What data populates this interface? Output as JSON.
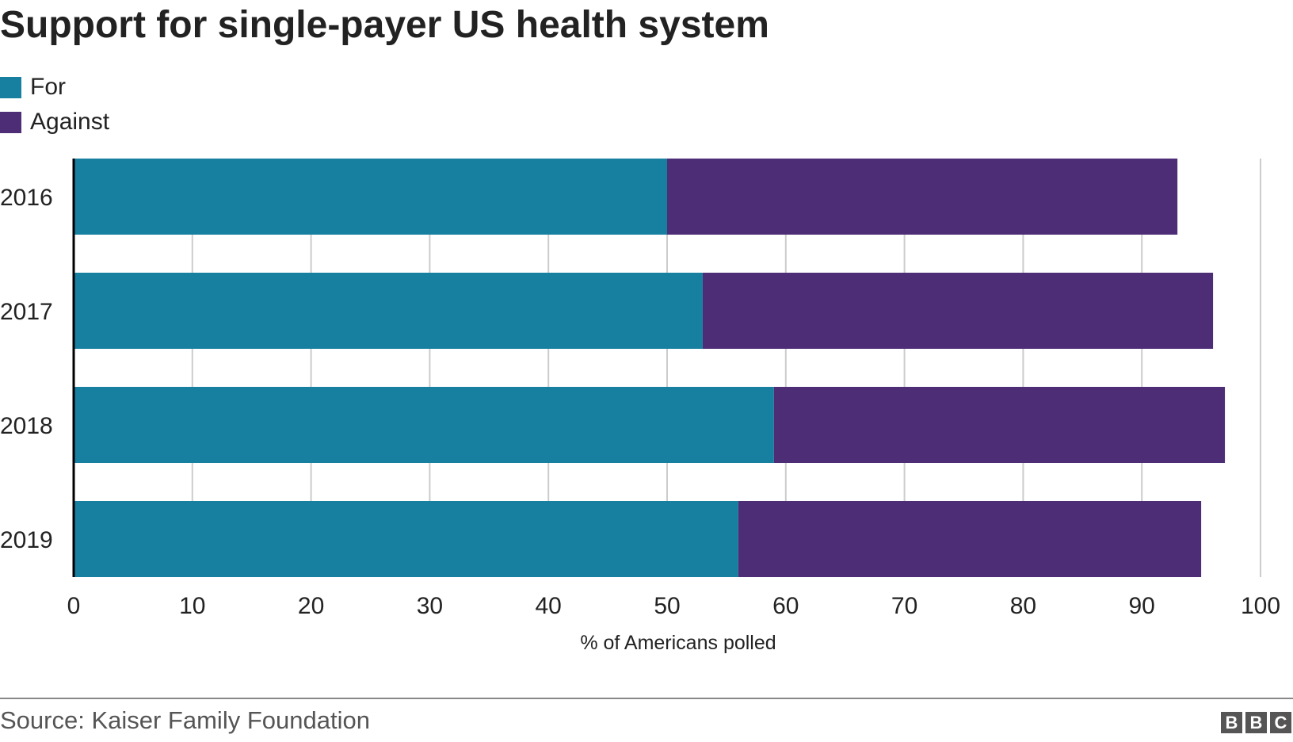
{
  "title": "Support for single-payer US health system",
  "source": "Source: Kaiser Family Foundation",
  "logo_letters": [
    "B",
    "B",
    "C"
  ],
  "colors": {
    "for": "#1780a1",
    "against": "#4e2d77",
    "grid": "#cccccc",
    "axis": "#000000"
  },
  "chart_data": {
    "type": "bar",
    "orientation": "horizontal",
    "stacked": true,
    "categories": [
      "2016",
      "2017",
      "2018",
      "2019"
    ],
    "series": [
      {
        "name": "For",
        "values": [
          50,
          53,
          59,
          56
        ],
        "color": "#1780a1"
      },
      {
        "name": "Against",
        "values": [
          43,
          43,
          38,
          39
        ],
        "color": "#4e2d77"
      }
    ],
    "xlabel": "% of Americans polled",
    "ylabel": "",
    "xlim": [
      0,
      100
    ],
    "xticks": [
      0,
      10,
      20,
      30,
      40,
      50,
      60,
      70,
      80,
      90,
      100
    ],
    "grid": true,
    "legend_position": "top-left"
  }
}
